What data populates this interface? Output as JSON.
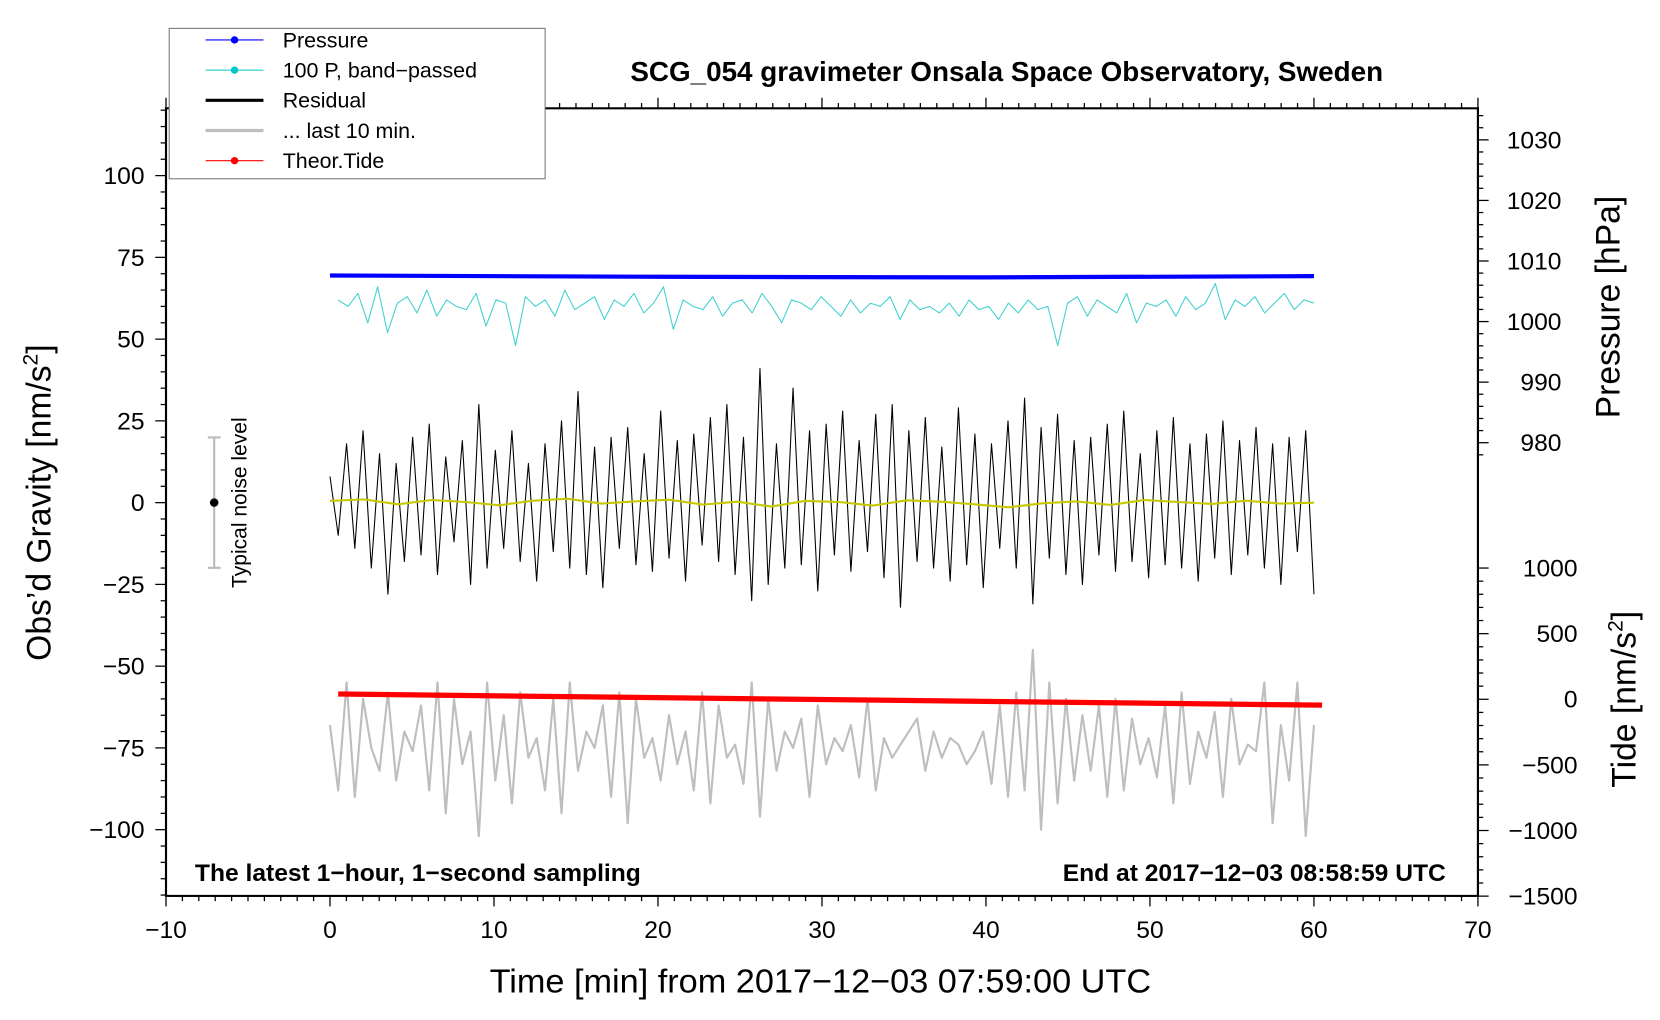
{
  "chart_data": {
    "type": "line",
    "title": "SCG_054 gravimeter Onsala Space Observatory, Sweden",
    "xlabel": "Time [min] from 2017−12−03 07:59:00 UTC",
    "ylabel_left": "Obs’d Gravity [nm/s",
    "ylabel_left_sup": "2",
    "ylabel_right_pressure": "Pressure [hPa]",
    "ylabel_right_tide": "Tide [nm/s",
    "ylabel_right_tide_sup": "2",
    "xlim": [
      -10,
      70
    ],
    "ylim_left": [
      -120,
      120
    ],
    "x_ticks": [
      -10,
      0,
      10,
      20,
      30,
      40,
      50,
      60,
      70
    ],
    "y_ticks_left": [
      -100,
      -75,
      -50,
      -25,
      0,
      25,
      50,
      75,
      100
    ],
    "pressure_ticks": [
      980,
      990,
      1000,
      1010,
      1020,
      1030
    ],
    "tide_ticks": [
      -1500,
      -1000,
      -500,
      0,
      500,
      1000
    ],
    "grid": false,
    "legend_placement": "top-left",
    "legend": [
      {
        "label": "Pressure",
        "color": "#0000ff"
      },
      {
        "label": "100 P, band−passed",
        "color": "#00c8c8"
      },
      {
        "label": "Residual",
        "color": "#000000"
      },
      {
        "label": "... last 10 min.",
        "color": "#bebebe"
      },
      {
        "label": "Theor.Tide",
        "color": "#ff0000"
      }
    ],
    "annotations": {
      "noise_label": "Typical noise level",
      "noise_range": [
        -20,
        20
      ],
      "noise_x": -7,
      "left_note": "The latest 1−hour, 1−second sampling",
      "right_note": "End at 2017−12−03 08:58:59 UTC"
    },
    "series": [
      {
        "name": "Pressure",
        "axis": "pressure_hPa",
        "color": "#0000ff",
        "x": [
          0,
          20,
          40,
          60
        ],
        "y": [
          1007.6,
          1007.4,
          1007.3,
          1007.5
        ]
      },
      {
        "name": "100 P, band-passed",
        "axis": "left",
        "color": "#40d0d0",
        "x_range": [
          0.5,
          60
        ],
        "y": [
          62,
          60,
          64,
          55,
          66,
          52,
          61,
          63,
          58,
          65,
          57,
          62,
          60,
          59,
          64,
          54,
          62,
          61,
          48,
          63,
          60,
          62,
          57,
          65,
          59,
          61,
          63,
          56,
          62,
          60,
          64,
          58,
          61,
          66,
          53,
          62,
          60,
          59,
          63,
          57,
          61,
          62,
          58,
          64,
          60,
          55,
          62,
          61,
          59,
          63,
          60,
          57,
          62,
          58,
          61,
          60,
          63,
          56,
          62,
          59,
          60,
          58,
          61,
          57,
          62,
          59,
          60,
          56,
          61,
          58,
          62,
          59,
          60,
          48,
          61,
          63,
          57,
          62,
          60,
          58,
          64,
          55,
          61,
          60,
          62,
          57,
          63,
          59,
          61,
          67,
          56,
          62,
          60,
          63,
          58,
          61,
          64,
          59,
          62,
          61
        ]
      },
      {
        "name": "Residual",
        "axis": "left",
        "color": "#000000",
        "x_range": [
          0,
          60
        ],
        "y": [
          8,
          -10,
          18,
          -14,
          22,
          -20,
          15,
          -28,
          12,
          -18,
          20,
          -16,
          24,
          -22,
          14,
          -12,
          19,
          -25,
          30,
          -20,
          16,
          -14,
          22,
          -18,
          12,
          -24,
          18,
          -15,
          25,
          -20,
          34,
          -22,
          17,
          -26,
          20,
          -14,
          23,
          -19,
          15,
          -21,
          28,
          -17,
          19,
          -24,
          21,
          -13,
          26,
          -18,
          30,
          -22,
          20,
          -30,
          41,
          -25,
          18,
          -20,
          35,
          -19,
          22,
          -27,
          24,
          -16,
          28,
          -21,
          19,
          -15,
          27,
          -23,
          30,
          -32,
          22,
          -18,
          26,
          -20,
          17,
          -24,
          29,
          -19,
          21,
          -26,
          18,
          -14,
          25,
          -20,
          32,
          -31,
          23,
          -17,
          27,
          -22,
          19,
          -25,
          20,
          -16,
          24,
          -21,
          28,
          -18,
          15,
          -23,
          22,
          -19,
          26,
          -20,
          18,
          -24,
          21,
          -17,
          25,
          -22,
          19,
          -16,
          23,
          -20,
          18,
          -25,
          20,
          -15,
          22,
          -28
        ]
      },
      {
        "name": "Residual smoothed",
        "axis": "left",
        "color": "#c8c800",
        "x_range": [
          0,
          60
        ],
        "y": [
          0.5,
          1,
          -0.5,
          0.8,
          0.2,
          -0.8,
          0.6,
          1.2,
          -0.3,
          0.4,
          0.9,
          -0.6,
          0.3,
          -1.2,
          0.5,
          0.2,
          -0.9,
          0.7,
          0.3,
          -0.5,
          -1.4,
          -0.2,
          0.4,
          -0.7,
          0.8,
          0.2,
          -0.4,
          0.6,
          -0.3,
          0
        ]
      },
      {
        "name": "... last 10 min.",
        "axis": "left",
        "color": "#bebebe",
        "x_range": [
          0,
          60
        ],
        "y": [
          -68,
          -88,
          -55,
          -90,
          -60,
          -75,
          -82,
          -58,
          -85,
          -70,
          -76,
          -62,
          -88,
          -55,
          -95,
          -60,
          -80,
          -70,
          -102,
          -55,
          -85,
          -65,
          -92,
          -58,
          -78,
          -72,
          -88,
          -60,
          -95,
          -55,
          -82,
          -70,
          -75,
          -62,
          -90,
          -58,
          -98,
          -60,
          -78,
          -72,
          -85,
          -65,
          -80,
          -70,
          -88,
          -58,
          -92,
          -62,
          -78,
          -74,
          -86,
          -55,
          -96,
          -60,
          -82,
          -70,
          -75,
          -66,
          -90,
          -62,
          -80,
          -72,
          -76,
          -68,
          -84,
          -60,
          -88,
          -72,
          -78,
          -74,
          -70,
          -66,
          -82,
          -70,
          -78,
          -72,
          -74,
          -80,
          -76,
          -70,
          -86,
          -62,
          -90,
          -58,
          -88,
          -45,
          -100,
          -55,
          -92,
          -60,
          -85,
          -65,
          -82,
          -62,
          -90,
          -60,
          -88,
          -66,
          -80,
          -72,
          -84,
          -62,
          -92,
          -58,
          -86,
          -70,
          -78,
          -64,
          -90,
          -60,
          -80,
          -74,
          -76,
          -55,
          -98,
          -68,
          -85,
          -55,
          -102,
          -68
        ]
      },
      {
        "name": "Theor.Tide",
        "axis": "tide_nm_s2",
        "color": "#ff0000",
        "x": [
          0.5,
          60.5
        ],
        "y": [
          40,
          -45
        ]
      }
    ]
  }
}
